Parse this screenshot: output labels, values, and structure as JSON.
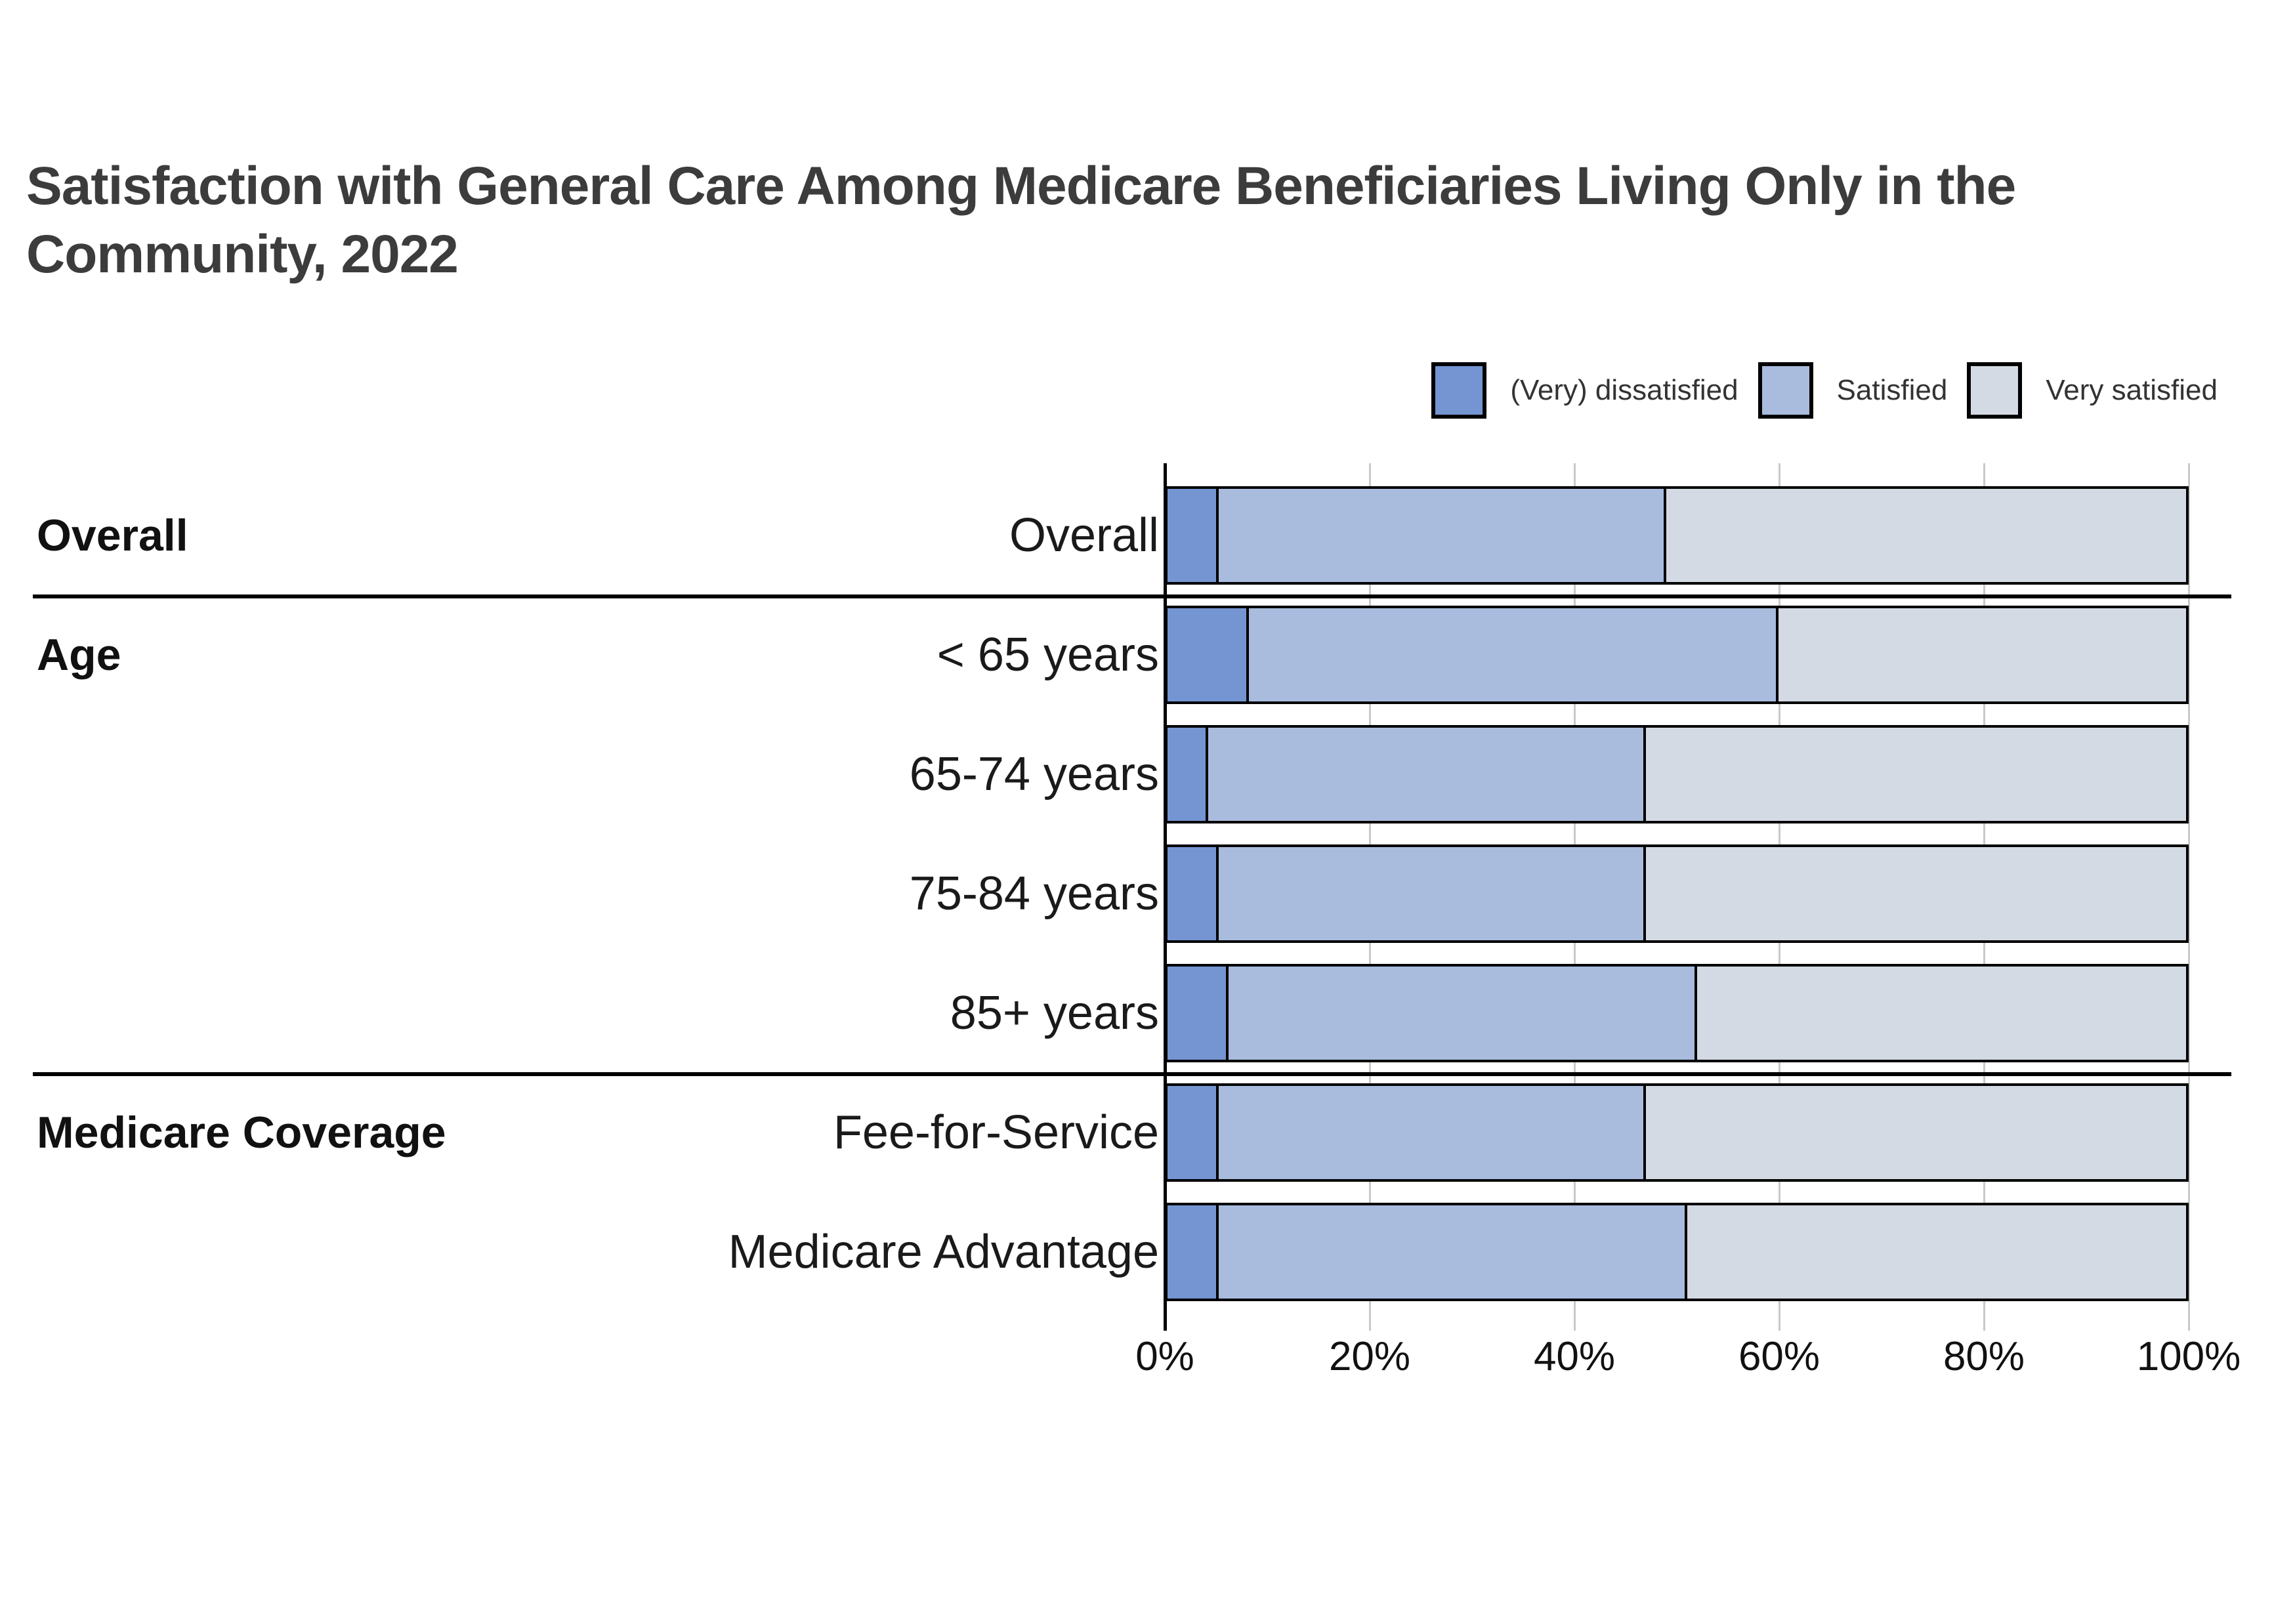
{
  "title_line1": "Satisfaction with General Care Among Medicare Beneficiaries Living Only in the",
  "title_line2": "Community, 2022",
  "colors": {
    "dissatisfied": "#7495d2",
    "satisfied": "#a9bcde",
    "very_satisfied": "#d4dae3",
    "bar_border": "#000000",
    "gridline": "#c9c9c9",
    "title_text": "#3c3c3c"
  },
  "chart_data": {
    "type": "bar",
    "subtype": "horizontal-stacked",
    "title": "Satisfaction with General Care Among Medicare Beneficiaries Living Only in the Community, 2022",
    "xlabel": "",
    "ylabel": "",
    "xlim": [
      0,
      100
    ],
    "x_ticks": [
      {
        "value": 0,
        "label": "0%"
      },
      {
        "value": 20,
        "label": "20%"
      },
      {
        "value": 40,
        "label": "40%"
      },
      {
        "value": 60,
        "label": "60%"
      },
      {
        "value": 80,
        "label": "80%"
      },
      {
        "value": 100,
        "label": "100%"
      }
    ],
    "grid": true,
    "legend_position": "top-right",
    "series": [
      {
        "name": "(Very) dissatisfied",
        "color": "#7495d2"
      },
      {
        "name": "Satisfied",
        "color": "#a9bcde"
      },
      {
        "name": "Very satisfied",
        "color": "#d4dae3"
      }
    ],
    "categories": [
      "Overall",
      "< 65 years",
      "65-74 years",
      "75-84 years",
      "85+ years",
      "Fee-for-Service",
      "Medicare Advantage"
    ],
    "rows": [
      {
        "label": "Overall",
        "group": "Overall",
        "separator_above": false,
        "values": [
          5,
          44,
          51
        ]
      },
      {
        "label": "< 65 years",
        "group": "Age",
        "separator_above": true,
        "values": [
          8,
          52,
          40
        ]
      },
      {
        "label": "65-74 years",
        "group": "",
        "separator_above": false,
        "values": [
          4,
          43,
          53
        ]
      },
      {
        "label": "75-84 years",
        "group": "",
        "separator_above": false,
        "values": [
          5,
          42,
          53
        ]
      },
      {
        "label": "85+ years",
        "group": "",
        "separator_above": false,
        "values": [
          6,
          46,
          48
        ]
      },
      {
        "label": "Fee-for-Service",
        "group": "Medicare Coverage",
        "separator_above": true,
        "values": [
          5,
          42,
          53
        ]
      },
      {
        "label": "Medicare Advantage",
        "group": "",
        "separator_above": false,
        "values": [
          5,
          46,
          49
        ]
      }
    ]
  }
}
